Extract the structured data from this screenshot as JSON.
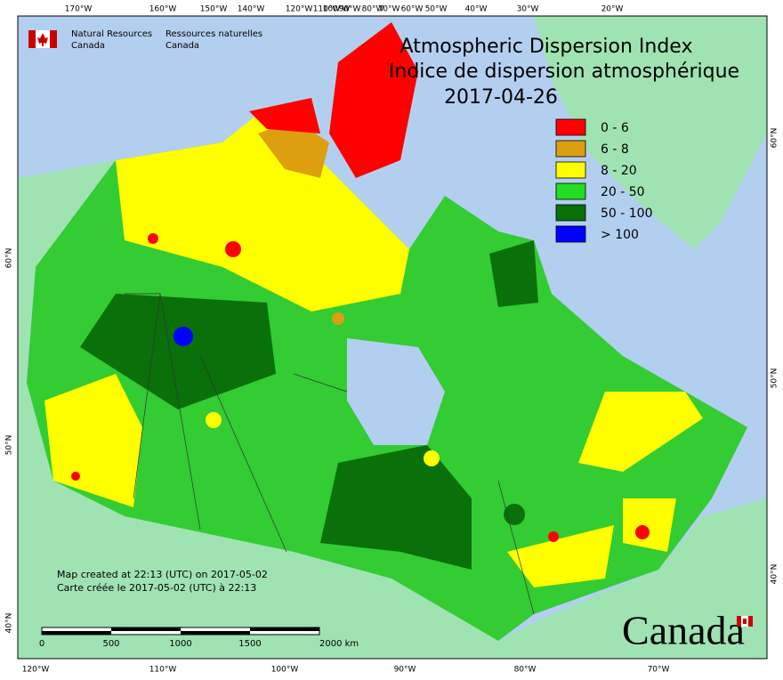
{
  "header": {
    "agency_en": [
      "Natural Resources",
      "Canada"
    ],
    "agency_fr": [
      "Ressources naturelles",
      "Canada"
    ],
    "title_en": "Atmospheric Dispersion Index",
    "title_fr": "Indice de dispersion atmosphérique",
    "date": "2017-04-26"
  },
  "legend": {
    "items": [
      {
        "label": "0 - 6",
        "color": "#ff0000"
      },
      {
        "label": "6 - 8",
        "color": "#dd9f10"
      },
      {
        "label": "8 - 20",
        "color": "#ffff00"
      },
      {
        "label": "20 - 50",
        "color": "#22dd22"
      },
      {
        "label": "50 - 100",
        "color": "#0a700a"
      },
      {
        "label": "> 100",
        "color": "#0000ff"
      }
    ]
  },
  "graticule": {
    "top": [
      "170°W",
      "160°W",
      "150°W",
      "140°W",
      "120°W",
      "110°W",
      "100°W",
      "90°W",
      "80°W",
      "70°W",
      "60°W",
      "50°W",
      "40°W",
      "30°W",
      "20°W"
    ],
    "bottom": [
      "120°W",
      "110°W",
      "100°W",
      "90°W",
      "80°W",
      "70°W"
    ],
    "right": [
      "60°N",
      "50°N",
      "40°N"
    ],
    "left": [
      "60°N",
      "50°N",
      "40°N"
    ]
  },
  "footer": {
    "created_en": "Map created at 22:13 (UTC) on 2017-05-02",
    "created_fr": "Carte créée le 2017-05-02 (UTC) à 22:13",
    "scale_labels": [
      "0",
      "500",
      "1000",
      "1500",
      "2000 km"
    ],
    "wordmark": "Canada"
  }
}
